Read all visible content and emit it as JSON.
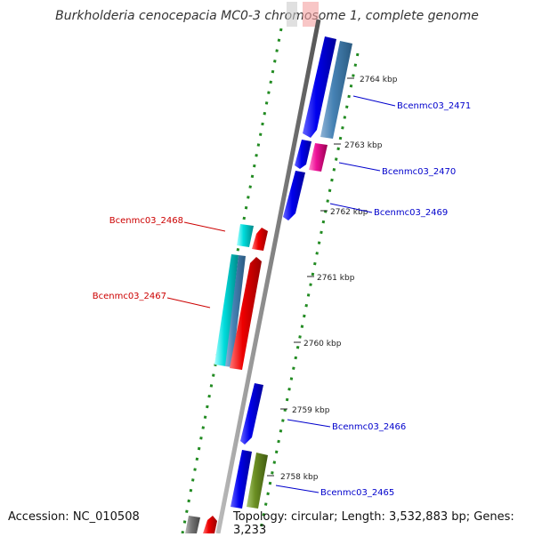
{
  "title": "Burkholderia cenocepacia MC0-3 chromosome 1, complete genome",
  "footer": {
    "accession": "Accession: NC_010508",
    "summary": "Topology: circular; Length: 3,532,883 bp; Genes: 3,233"
  },
  "ticks": [
    "2764 kbp",
    "2763 kbp",
    "2762 kbp",
    "2761 kbp",
    "2760 kbp",
    "2759 kbp",
    "2758 kbp"
  ],
  "genes": {
    "forward": [
      "Bcenmc03_2471",
      "Bcenmc03_2470",
      "Bcenmc03_2469",
      "Bcenmc03_2466",
      "Bcenmc03_2465"
    ],
    "reverse": [
      "Bcenmc03_2468",
      "Bcenmc03_2467"
    ]
  },
  "colors": {
    "forward_label": "#0000cc",
    "reverse_label": "#cc0000",
    "backbone": "#888888",
    "dots": "#228b22",
    "blue_cds": "#0000ee",
    "steel_cds": "#4682b4",
    "red_cds": "#ee0000",
    "cyan_cds": "#00cccc",
    "magenta_cds": "#ee1199",
    "olive_cds": "#6b8e23",
    "gray_cds": "#777777"
  }
}
